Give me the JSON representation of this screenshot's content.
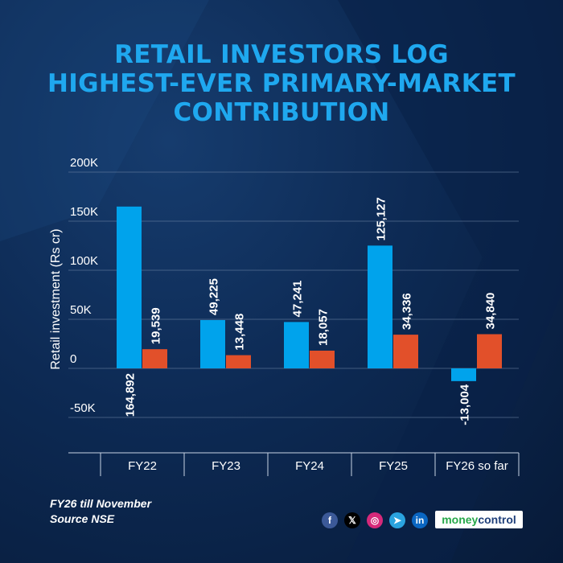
{
  "title_lines": [
    "RETAIL INVESTORS LOG",
    "HIGHEST-EVER PRIMARY-MARKET",
    "CONTRIBUTION"
  ],
  "footnote_lines": [
    "FY26 till November",
    "Source NSE"
  ],
  "brand": {
    "part1": "money",
    "part2": "control"
  },
  "social_icons": [
    {
      "name": "facebook-icon",
      "glyph": "f",
      "color": "#3b5998"
    },
    {
      "name": "x-icon",
      "glyph": "𝕏",
      "color": "#000000"
    },
    {
      "name": "instagram-icon",
      "glyph": "◎",
      "color": "#d6297a"
    },
    {
      "name": "telegram-icon",
      "glyph": "➤",
      "color": "#2aa3df"
    },
    {
      "name": "linkedin-icon",
      "glyph": "in",
      "color": "#0a66c2"
    }
  ],
  "colors": {
    "series_a": "#00a3ec",
    "series_b": "#e2502a",
    "title": "#1fa8ef"
  },
  "chart_data": {
    "type": "bar",
    "categories": [
      "FY22",
      "FY23",
      "FY24",
      "FY25",
      "FY26 so far"
    ],
    "series": [
      {
        "values": [
          164892,
          49225,
          47241,
          125127,
          -13004
        ],
        "labels": [
          "164,892",
          "49,225",
          "47,241",
          "125,127",
          "-13,004"
        ]
      },
      {
        "values": [
          19539,
          13448,
          18057,
          34336,
          34840
        ],
        "labels": [
          "19,539",
          "13,448",
          "18,057",
          "34,336",
          "34,840"
        ]
      }
    ],
    "ylabel": "Retail investment (Rs cr)",
    "yticks": [
      200000,
      150000,
      100000,
      50000,
      0,
      -50000
    ],
    "ytick_labels": [
      "200K",
      "150K",
      "100K",
      "50K",
      "0",
      "-50K"
    ],
    "ylim": [
      -50000,
      200000
    ],
    "grid": true
  }
}
